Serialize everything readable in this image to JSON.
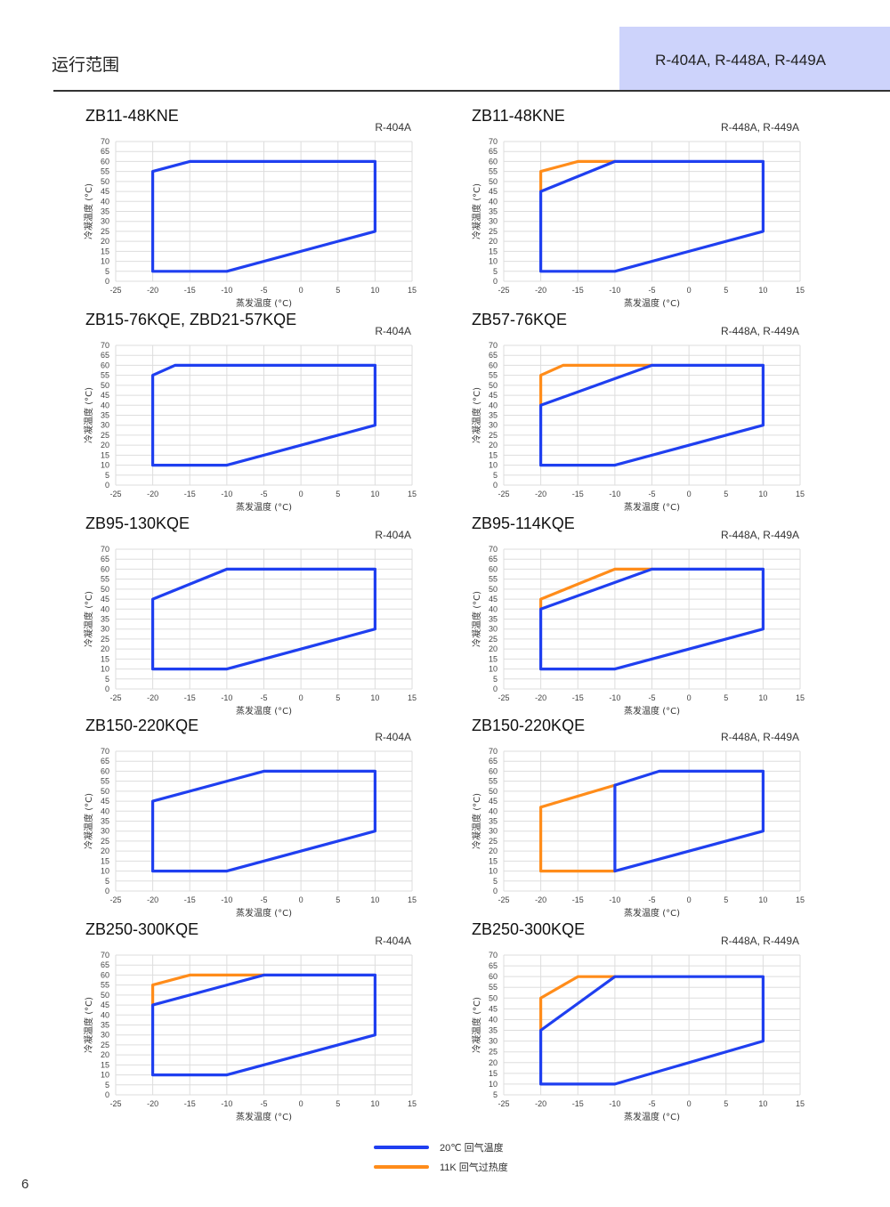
{
  "header": {
    "title": "运行范围",
    "refrigerants": "R-404A, R-448A, R-449A"
  },
  "page_number": "6",
  "legend": [
    {
      "label": "20℃ 回气温度",
      "color": "#1f3ff0"
    },
    {
      "label": "11K 回气过热度",
      "color": "#ff8c1a"
    }
  ],
  "colors": {
    "blue": "#1f3ff0",
    "orange": "#ff8c1a",
    "grid": "#dddddd"
  },
  "chart_data": [
    {
      "type": "line",
      "title": "ZB11-48KNE",
      "refrigerant": "R-404A",
      "xlabel": "蒸发温度 (°C)",
      "ylabel": "冷凝温度 (°C)",
      "xlim": [
        -25,
        15
      ],
      "ylim": [
        0,
        70
      ],
      "xticks": [
        -25,
        -20,
        -15,
        -10,
        -5,
        0,
        5,
        10,
        15
      ],
      "yticks": [
        0,
        5,
        10,
        15,
        20,
        25,
        30,
        35,
        40,
        45,
        50,
        55,
        60,
        65,
        70
      ],
      "series": [
        {
          "color": "blue",
          "closed": true,
          "points": [
            [
              -20,
              5
            ],
            [
              -10,
              5
            ],
            [
              10,
              25
            ],
            [
              10,
              60
            ],
            [
              -15,
              60
            ],
            [
              -20,
              55
            ]
          ]
        }
      ]
    },
    {
      "type": "line",
      "title": "ZB11-48KNE",
      "refrigerant": "R-448A, R-449A",
      "xlabel": "蒸发温度 (°C)",
      "ylabel": "冷凝温度 (°C)",
      "xlim": [
        -25,
        15
      ],
      "ylim": [
        0,
        70
      ],
      "xticks": [
        -25,
        -20,
        -15,
        -10,
        -5,
        0,
        5,
        10,
        15
      ],
      "yticks": [
        0,
        5,
        10,
        15,
        20,
        25,
        30,
        35,
        40,
        45,
        50,
        55,
        60,
        65,
        70
      ],
      "series": [
        {
          "color": "orange",
          "closed": false,
          "points": [
            [
              -20,
              45
            ],
            [
              -20,
              55
            ],
            [
              -15,
              60
            ],
            [
              -10,
              60
            ]
          ]
        },
        {
          "color": "blue",
          "closed": true,
          "points": [
            [
              -20,
              5
            ],
            [
              -10,
              5
            ],
            [
              10,
              25
            ],
            [
              10,
              60
            ],
            [
              -10,
              60
            ],
            [
              -20,
              45
            ]
          ]
        }
      ]
    },
    {
      "type": "line",
      "title": "ZB15-76KQE, ZBD21-57KQE",
      "refrigerant": "R-404A",
      "xlabel": "蒸发温度 (°C)",
      "ylabel": "冷凝温度 (°C)",
      "xlim": [
        -25,
        15
      ],
      "ylim": [
        0,
        70
      ],
      "xticks": [
        -25,
        -20,
        -15,
        -10,
        -5,
        0,
        5,
        10,
        15
      ],
      "yticks": [
        0,
        5,
        10,
        15,
        20,
        25,
        30,
        35,
        40,
        45,
        50,
        55,
        60,
        65,
        70
      ],
      "series": [
        {
          "color": "blue",
          "closed": true,
          "points": [
            [
              -20,
              10
            ],
            [
              -10,
              10
            ],
            [
              10,
              30
            ],
            [
              10,
              60
            ],
            [
              -17,
              60
            ],
            [
              -20,
              55
            ]
          ]
        }
      ]
    },
    {
      "type": "line",
      "title": "ZB57-76KQE",
      "refrigerant": "R-448A, R-449A",
      "xlabel": "蒸发温度 (°C)",
      "ylabel": "冷凝温度 (°C)",
      "xlim": [
        -25,
        15
      ],
      "ylim": [
        0,
        70
      ],
      "xticks": [
        -25,
        -20,
        -15,
        -10,
        -5,
        0,
        5,
        10,
        15
      ],
      "yticks": [
        0,
        5,
        10,
        15,
        20,
        25,
        30,
        35,
        40,
        45,
        50,
        55,
        60,
        65,
        70
      ],
      "series": [
        {
          "color": "orange",
          "closed": false,
          "points": [
            [
              -20,
              40
            ],
            [
              -20,
              55
            ],
            [
              -17,
              60
            ],
            [
              -5,
              60
            ]
          ]
        },
        {
          "color": "blue",
          "closed": true,
          "points": [
            [
              -20,
              10
            ],
            [
              -10,
              10
            ],
            [
              10,
              30
            ],
            [
              10,
              60
            ],
            [
              -5,
              60
            ],
            [
              -20,
              40
            ]
          ]
        }
      ]
    },
    {
      "type": "line",
      "title": "ZB95-130KQE",
      "refrigerant": "R-404A",
      "xlabel": "蒸发温度 (°C)",
      "ylabel": "冷凝温度 (°C)",
      "xlim": [
        -25,
        15
      ],
      "ylim": [
        0,
        70
      ],
      "xticks": [
        -25,
        -20,
        -15,
        -10,
        -5,
        0,
        5,
        10,
        15
      ],
      "yticks": [
        0,
        5,
        10,
        15,
        20,
        25,
        30,
        35,
        40,
        45,
        50,
        55,
        60,
        65,
        70
      ],
      "series": [
        {
          "color": "blue",
          "closed": true,
          "points": [
            [
              -20,
              10
            ],
            [
              -10,
              10
            ],
            [
              10,
              30
            ],
            [
              10,
              60
            ],
            [
              -10,
              60
            ],
            [
              -20,
              45
            ]
          ]
        }
      ]
    },
    {
      "type": "line",
      "title": "ZB95-114KQE",
      "refrigerant": "R-448A, R-449A",
      "xlabel": "蒸发温度 (°C)",
      "ylabel": "冷凝温度 (°C)",
      "xlim": [
        -25,
        15
      ],
      "ylim": [
        0,
        70
      ],
      "xticks": [
        -25,
        -20,
        -15,
        -10,
        -5,
        0,
        5,
        10,
        15
      ],
      "yticks": [
        0,
        5,
        10,
        15,
        20,
        25,
        30,
        35,
        40,
        45,
        50,
        55,
        60,
        65,
        70
      ],
      "series": [
        {
          "color": "orange",
          "closed": false,
          "points": [
            [
              -20,
              40
            ],
            [
              -20,
              45
            ],
            [
              -10,
              60
            ],
            [
              -5,
              60
            ]
          ]
        },
        {
          "color": "blue",
          "closed": true,
          "points": [
            [
              -20,
              10
            ],
            [
              -10,
              10
            ],
            [
              10,
              30
            ],
            [
              10,
              60
            ],
            [
              -5,
              60
            ],
            [
              -20,
              40
            ]
          ]
        }
      ]
    },
    {
      "type": "line",
      "title": "ZB150-220KQE",
      "refrigerant": "R-404A",
      "xlabel": "蒸发温度 (°C)",
      "ylabel": "冷凝温度 (°C)",
      "xlim": [
        -25,
        15
      ],
      "ylim": [
        0,
        70
      ],
      "xticks": [
        -25,
        -20,
        -15,
        -10,
        -5,
        0,
        5,
        10,
        15
      ],
      "yticks": [
        0,
        5,
        10,
        15,
        20,
        25,
        30,
        35,
        40,
        45,
        50,
        55,
        60,
        65,
        70
      ],
      "series": [
        {
          "color": "blue",
          "closed": true,
          "points": [
            [
              -20,
              10
            ],
            [
              -10,
              10
            ],
            [
              10,
              30
            ],
            [
              10,
              60
            ],
            [
              -5,
              60
            ],
            [
              -20,
              45
            ]
          ]
        }
      ]
    },
    {
      "type": "line",
      "title": "ZB150-220KQE",
      "refrigerant": "R-448A, R-449A",
      "xlabel": "蒸发温度 (°C)",
      "ylabel": "冷凝温度 (°C)",
      "xlim": [
        -25,
        15
      ],
      "ylim": [
        0,
        70
      ],
      "xticks": [
        -25,
        -20,
        -15,
        -10,
        -5,
        0,
        5,
        10,
        15
      ],
      "yticks": [
        0,
        5,
        10,
        15,
        20,
        25,
        30,
        35,
        40,
        45,
        50,
        55,
        60,
        65,
        70
      ],
      "series": [
        {
          "color": "orange",
          "closed": false,
          "points": [
            [
              -10,
              10
            ],
            [
              -20,
              10
            ],
            [
              -20,
              42
            ],
            [
              -10,
              53
            ]
          ]
        },
        {
          "color": "blue",
          "closed": true,
          "points": [
            [
              -10,
              10
            ],
            [
              10,
              30
            ],
            [
              10,
              60
            ],
            [
              -4,
              60
            ],
            [
              -10,
              53
            ]
          ]
        }
      ]
    },
    {
      "type": "line",
      "title": "ZB250-300KQE",
      "refrigerant": "R-404A",
      "xlabel": "蒸发温度 (°C)",
      "ylabel": "冷凝温度 (°C)",
      "xlim": [
        -25,
        15
      ],
      "ylim": [
        0,
        70
      ],
      "xticks": [
        -25,
        -20,
        -15,
        -10,
        -5,
        0,
        5,
        10,
        15
      ],
      "yticks": [
        0,
        5,
        10,
        15,
        20,
        25,
        30,
        35,
        40,
        45,
        50,
        55,
        60,
        65,
        70
      ],
      "series": [
        {
          "color": "orange",
          "closed": false,
          "points": [
            [
              -20,
              45
            ],
            [
              -20,
              55
            ],
            [
              -15,
              60
            ],
            [
              -5,
              60
            ]
          ]
        },
        {
          "color": "blue",
          "closed": true,
          "points": [
            [
              -20,
              10
            ],
            [
              -10,
              10
            ],
            [
              10,
              30
            ],
            [
              10,
              60
            ],
            [
              -5,
              60
            ],
            [
              -20,
              45
            ]
          ]
        }
      ]
    },
    {
      "type": "line",
      "title": "ZB250-300KQE",
      "refrigerant": "R-448A, R-449A",
      "xlabel": "蒸发温度 (°C)",
      "ylabel": "冷凝温度 (°C)",
      "xlim": [
        -25,
        15
      ],
      "ylim": [
        5,
        70
      ],
      "xticks": [
        -25,
        -20,
        -15,
        -10,
        -5,
        0,
        5,
        10,
        15
      ],
      "yticks": [
        5,
        10,
        15,
        20,
        25,
        30,
        35,
        40,
        45,
        50,
        55,
        60,
        65,
        70
      ],
      "series": [
        {
          "color": "orange",
          "closed": false,
          "points": [
            [
              -20,
              35
            ],
            [
              -20,
              50
            ],
            [
              -15,
              60
            ],
            [
              -10,
              60
            ]
          ]
        },
        {
          "color": "blue",
          "closed": true,
          "points": [
            [
              -20,
              10
            ],
            [
              -10,
              10
            ],
            [
              10,
              30
            ],
            [
              10,
              60
            ],
            [
              -10,
              60
            ],
            [
              -20,
              35
            ]
          ]
        }
      ]
    }
  ]
}
